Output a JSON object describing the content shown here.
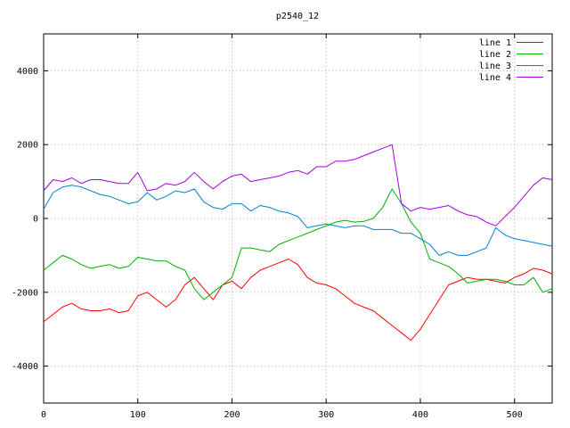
{
  "chart_data": {
    "type": "line",
    "title": "p2540_12",
    "xlabel": "",
    "ylabel": "",
    "xlim": [
      0,
      540
    ],
    "ylim": [
      -5000,
      5000
    ],
    "xticks": [
      0,
      100,
      200,
      300,
      400,
      500
    ],
    "yticks": [
      -4000,
      -2000,
      0,
      2000,
      4000
    ],
    "grid": true,
    "legend_position": "top-right",
    "x": [
      0,
      10,
      20,
      30,
      40,
      50,
      60,
      70,
      80,
      90,
      100,
      110,
      120,
      130,
      140,
      150,
      160,
      170,
      180,
      190,
      200,
      210,
      220,
      230,
      240,
      250,
      260,
      270,
      280,
      290,
      300,
      310,
      320,
      330,
      340,
      350,
      360,
      370,
      380,
      390,
      400,
      410,
      420,
      430,
      440,
      450,
      460,
      470,
      480,
      490,
      500,
      510,
      520,
      530,
      540
    ],
    "series": [
      {
        "name": "line 1",
        "color": "#ff0000",
        "values": [
          -2800,
          -2600,
          -2400,
          -2300,
          -2450,
          -2500,
          -2500,
          -2450,
          -2550,
          -2500,
          -2100,
          -2000,
          -2200,
          -2400,
          -2200,
          -1800,
          -1600,
          -1900,
          -2200,
          -1800,
          -1700,
          -1900,
          -1600,
          -1400,
          -1300,
          -1200,
          -1100,
          -1250,
          -1600,
          -1750,
          -1800,
          -1900,
          -2100,
          -2300,
          -2400,
          -2500,
          -2700,
          -2900,
          -3100,
          -3300,
          -3000,
          -2600,
          -2200,
          -1800,
          -1700,
          -1600,
          -1650,
          -1650,
          -1700,
          -1750,
          -1600,
          -1500,
          -1350,
          -1400,
          -1500
        ]
      },
      {
        "name": "line 2",
        "color": "#00b000",
        "values": [
          -1400,
          -1200,
          -1000,
          -1100,
          -1250,
          -1350,
          -1300,
          -1250,
          -1350,
          -1300,
          -1050,
          -1100,
          -1150,
          -1150,
          -1300,
          -1400,
          -1900,
          -2200,
          -2000,
          -1800,
          -1600,
          -800,
          -800,
          -850,
          -900,
          -700,
          -600,
          -500,
          -400,
          -300,
          -200,
          -100,
          -50,
          -100,
          -80,
          0,
          300,
          800,
          400,
          -100,
          -400,
          -1100,
          -1200,
          -1300,
          -1500,
          -1750,
          -1700,
          -1650,
          -1650,
          -1700,
          -1800,
          -1800,
          -1600,
          -2000,
          -1900
        ]
      },
      {
        "name": "line 3",
        "color": "#0080d0",
        "values": [
          250,
          700,
          850,
          900,
          850,
          750,
          650,
          600,
          500,
          400,
          450,
          700,
          500,
          600,
          750,
          700,
          800,
          450,
          300,
          250,
          400,
          400,
          200,
          350,
          300,
          200,
          150,
          50,
          -250,
          -200,
          -150,
          -200,
          -250,
          -200,
          -200,
          -300,
          -300,
          -300,
          -400,
          -400,
          -550,
          -700,
          -1000,
          -900,
          -1000,
          -1000,
          -900,
          -800,
          -250,
          -450,
          -550,
          -600,
          -650,
          -700,
          -750
        ]
      },
      {
        "name": "line 4",
        "color": "#a000e0",
        "values": [
          750,
          1050,
          1000,
          1100,
          950,
          1050,
          1050,
          1000,
          950,
          950,
          1250,
          750,
          800,
          950,
          900,
          1000,
          1250,
          1000,
          800,
          1000,
          1150,
          1200,
          1000,
          1050,
          1100,
          1150,
          1250,
          1300,
          1200,
          1400,
          1400,
          1550,
          1550,
          1600,
          1700,
          1800,
          1900,
          2000,
          400,
          200,
          300,
          250,
          300,
          350,
          200,
          100,
          50,
          -100,
          -200,
          50,
          300,
          600,
          900,
          1100,
          1050
        ]
      }
    ]
  }
}
